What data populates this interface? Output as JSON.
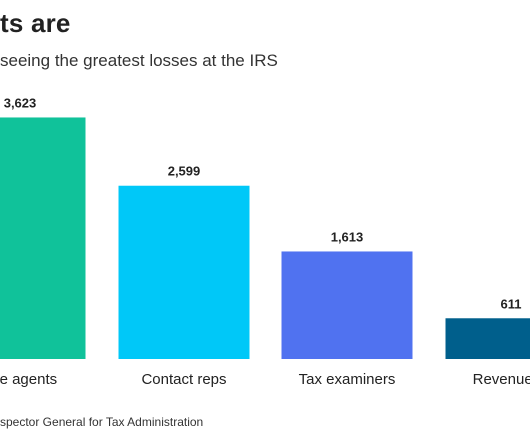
{
  "chart_data": {
    "type": "bar",
    "title": "ts are",
    "subtitle": "seeing the greatest losses at the IRS",
    "source": "spector General for Tax Administration",
    "categories": [
      "nue agents",
      "Contact reps",
      "Tax examiners",
      "Revenue of"
    ],
    "values": [
      3623,
      2599,
      1613,
      611
    ],
    "value_labels": [
      "3,623",
      "2,599",
      "1,613",
      "611"
    ],
    "colors": [
      "#10c29a",
      "#00c8f8",
      "#5072f0",
      "#005f8c"
    ],
    "ylim": [
      0,
      3900
    ],
    "grid": false,
    "legend": "none"
  }
}
